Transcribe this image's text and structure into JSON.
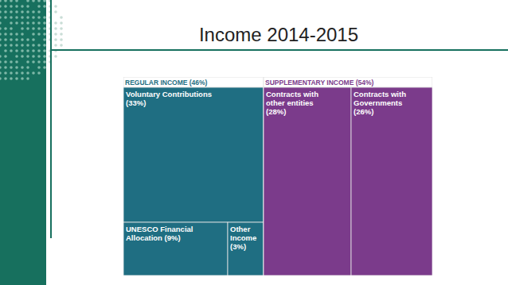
{
  "chart_data": {
    "type": "treemap",
    "title": "Income 2014-2015",
    "groups": [
      {
        "name": "REGULAR INCOME",
        "value": 46,
        "value_label": "(46%)",
        "color": "#1f6e82",
        "children": [
          {
            "name": "Voluntary Contributions",
            "value": 33,
            "value_label": "(33%)"
          },
          {
            "name": "UNESCO Financial Allocation",
            "value": 9,
            "value_label": "(9%)"
          },
          {
            "name": "Other Income",
            "value": 3,
            "value_label": "(3%)"
          }
        ]
      },
      {
        "name": "SUPPLEMENTARY INCOME",
        "value": 54,
        "value_label": "(54%)",
        "color": "#7b3b8b",
        "children": [
          {
            "name": "Contracts with other entities",
            "value": 28,
            "value_label": "(28%)"
          },
          {
            "name": "Contracts with Governments",
            "value": 26,
            "value_label": "(26%)"
          }
        ]
      }
    ]
  }
}
